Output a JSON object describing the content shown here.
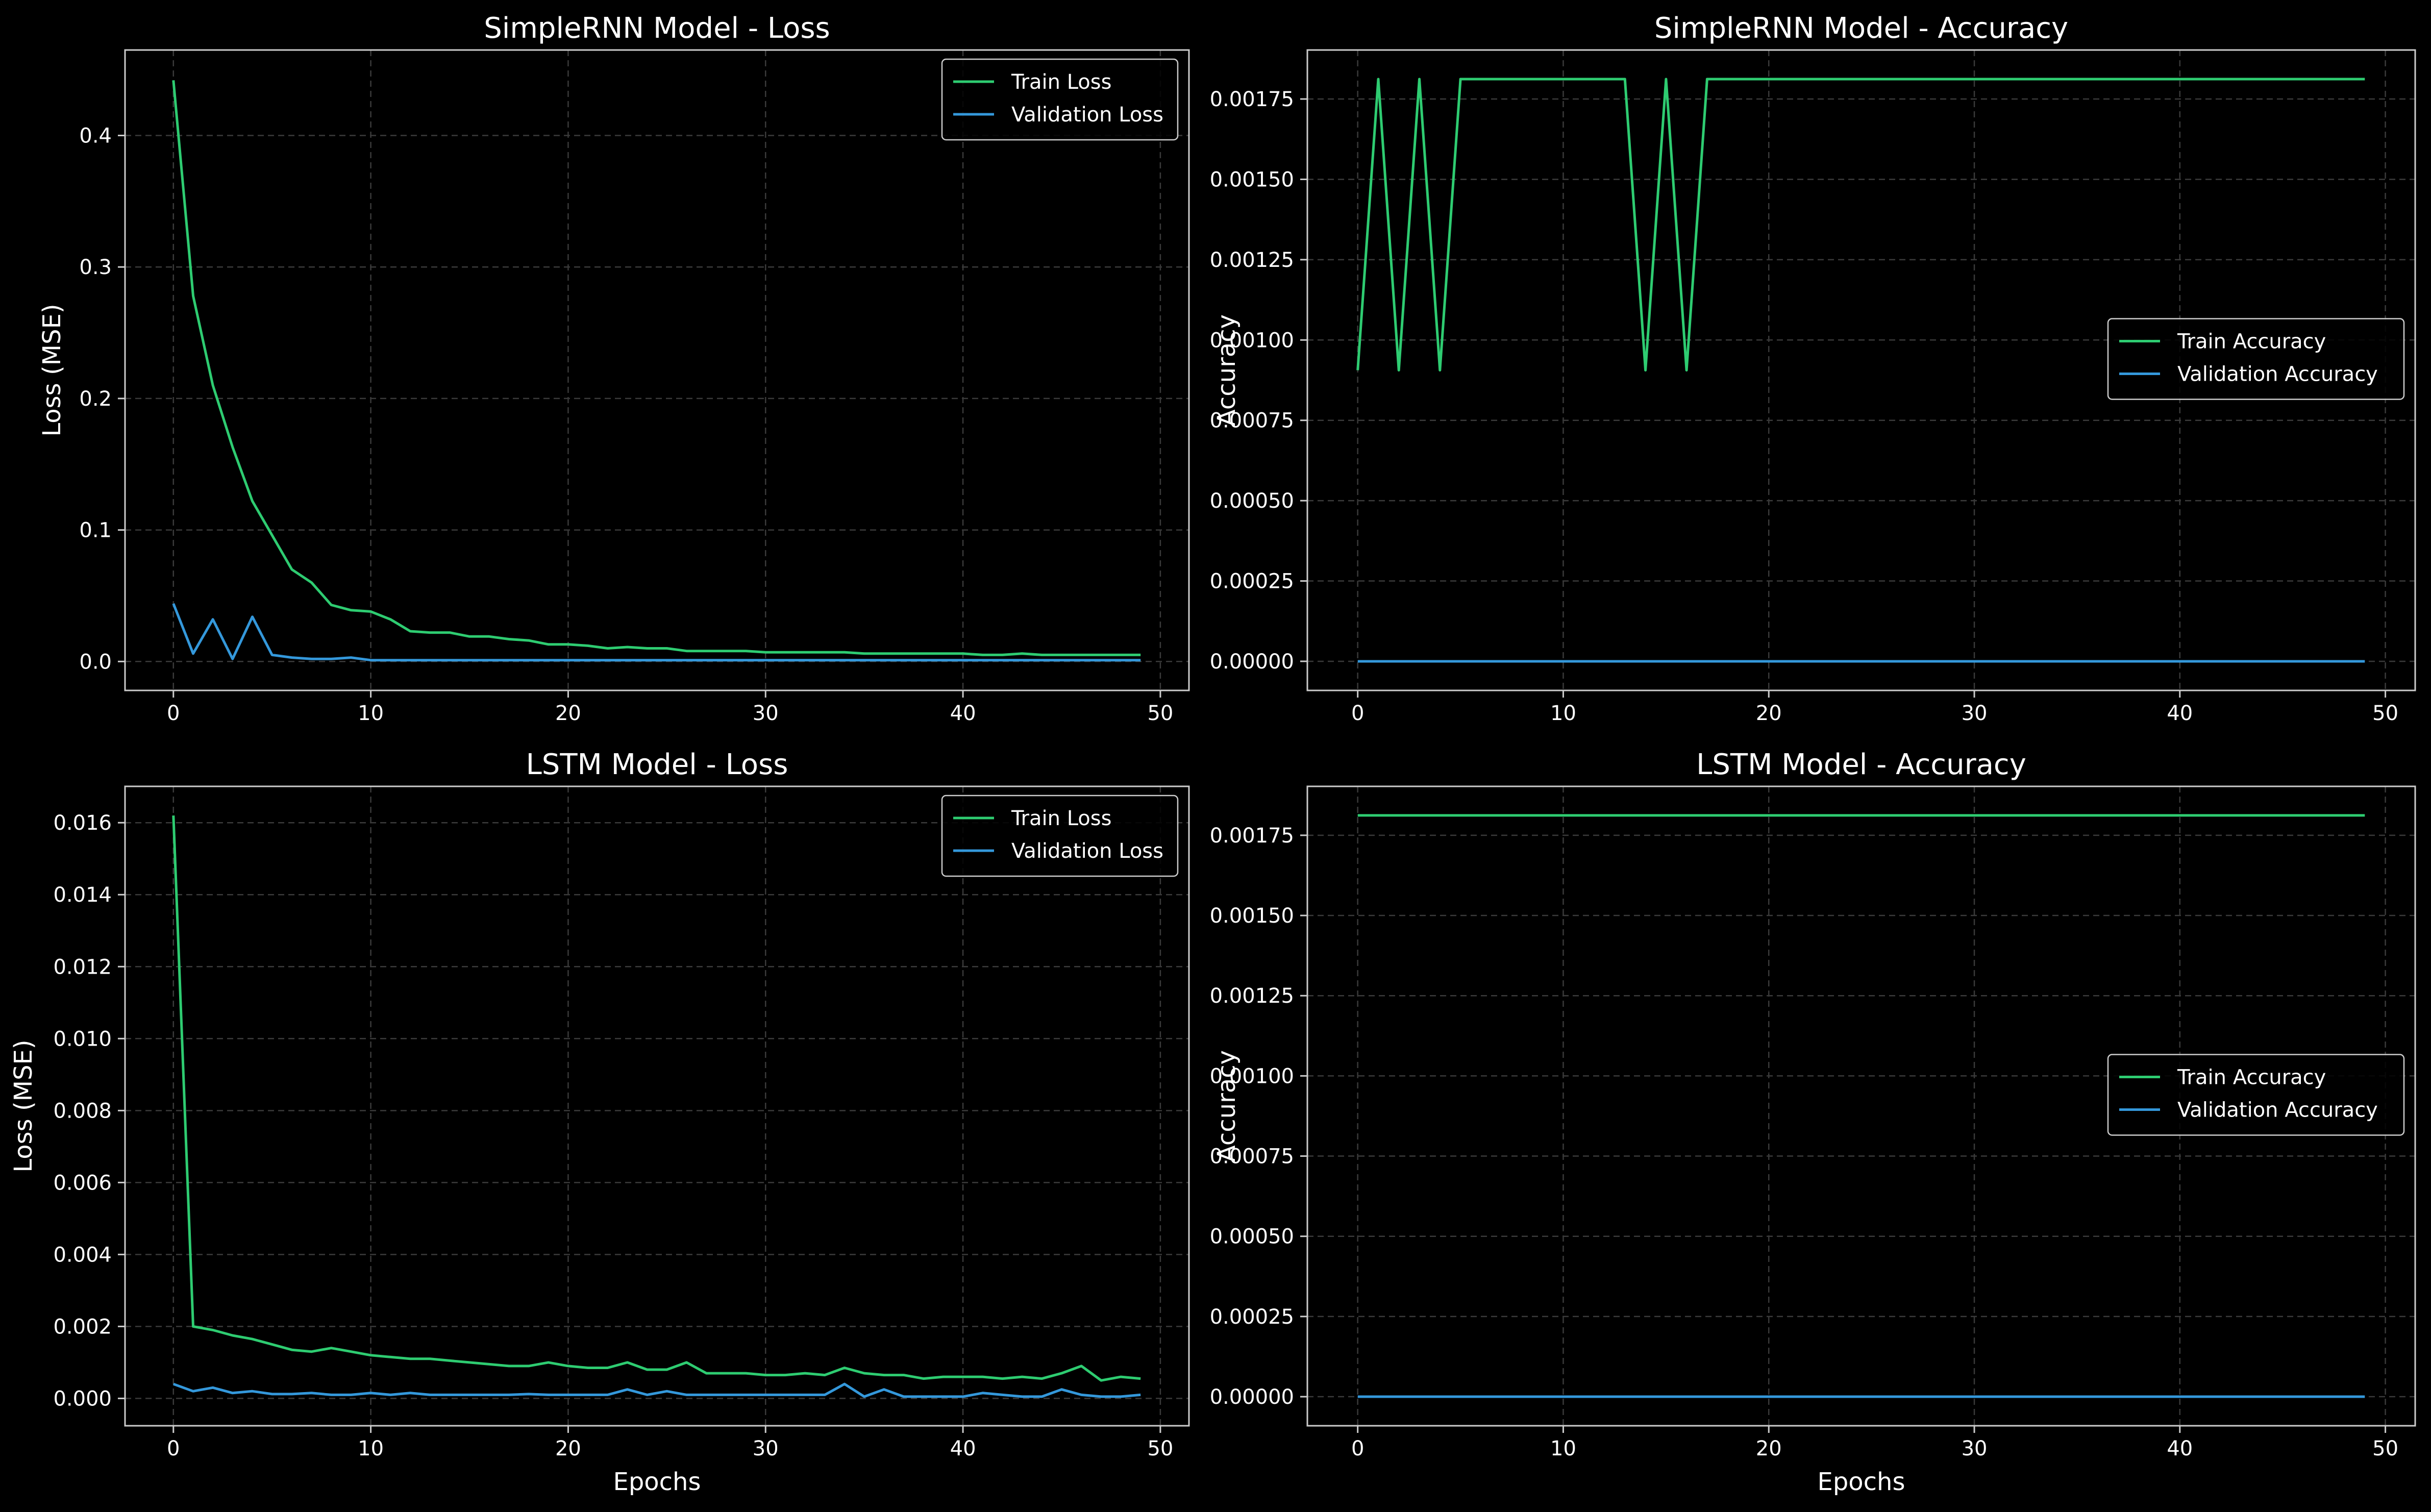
{
  "figure": {
    "background": "#000000"
  },
  "style": {
    "train_color": "#2ecc71",
    "validation_color": "#3498db",
    "axes_color": "#cccccc",
    "text_color": "#ffffff",
    "grid_color": "#3a3a3a"
  },
  "chart_data": [
    {
      "type": "line",
      "title": "SimpleRNN Model - Loss",
      "xlabel": "",
      "ylabel": "Loss (MSE)",
      "xlim": [
        -2.45,
        51.45
      ],
      "ylim": [
        -0.022,
        0.465
      ],
      "xticks": [
        0,
        10,
        20,
        30,
        40,
        50
      ],
      "xtick_labels": [
        "0",
        "10",
        "20",
        "30",
        "40",
        "50"
      ],
      "yticks": [
        0.0,
        0.1,
        0.2,
        0.3,
        0.4
      ],
      "ytick_labels": [
        "0.0",
        "0.1",
        "0.2",
        "0.3",
        "0.4"
      ],
      "grid": true,
      "legend": "upper right",
      "series": [
        {
          "name": "Train Loss",
          "color_key": "train",
          "x": [
            0,
            1,
            2,
            3,
            4,
            5,
            6,
            7,
            8,
            9,
            10,
            11,
            12,
            13,
            14,
            15,
            16,
            17,
            18,
            19,
            20,
            21,
            22,
            23,
            24,
            25,
            26,
            27,
            28,
            29,
            30,
            31,
            32,
            33,
            34,
            35,
            36,
            37,
            38,
            39,
            40,
            41,
            42,
            43,
            44,
            45,
            46,
            47,
            48,
            49
          ],
          "y": [
            0.442,
            0.278,
            0.21,
            0.163,
            0.122,
            0.096,
            0.07,
            0.06,
            0.043,
            0.039,
            0.038,
            0.032,
            0.023,
            0.022,
            0.022,
            0.019,
            0.019,
            0.017,
            0.016,
            0.013,
            0.013,
            0.012,
            0.01,
            0.011,
            0.01,
            0.01,
            0.008,
            0.008,
            0.008,
            0.008,
            0.007,
            0.007,
            0.007,
            0.007,
            0.007,
            0.006,
            0.006,
            0.006,
            0.006,
            0.006,
            0.006,
            0.005,
            0.005,
            0.006,
            0.005,
            0.005,
            0.005,
            0.005,
            0.005,
            0.005
          ]
        },
        {
          "name": "Validation Loss",
          "color_key": "validation",
          "x": [
            0,
            1,
            2,
            3,
            4,
            5,
            6,
            7,
            8,
            9,
            10,
            11,
            12,
            13,
            14,
            15,
            16,
            17,
            18,
            19,
            20,
            21,
            22,
            23,
            24,
            25,
            26,
            27,
            28,
            29,
            30,
            31,
            32,
            33,
            34,
            35,
            36,
            37,
            38,
            39,
            40,
            41,
            42,
            43,
            44,
            45,
            46,
            47,
            48,
            49
          ],
          "y": [
            0.044,
            0.006,
            0.032,
            0.002,
            0.034,
            0.005,
            0.003,
            0.002,
            0.002,
            0.003,
            0.001,
            0.001,
            0.001,
            0.001,
            0.001,
            0.001,
            0.001,
            0.001,
            0.001,
            0.001,
            0.001,
            0.001,
            0.001,
            0.001,
            0.001,
            0.001,
            0.001,
            0.001,
            0.001,
            0.001,
            0.001,
            0.001,
            0.001,
            0.001,
            0.001,
            0.001,
            0.001,
            0.001,
            0.001,
            0.001,
            0.001,
            0.001,
            0.001,
            0.001,
            0.001,
            0.001,
            0.001,
            0.001,
            0.001,
            0.001
          ]
        }
      ]
    },
    {
      "type": "line",
      "title": "SimpleRNN Model - Accuracy",
      "xlabel": "",
      "ylabel": "Accuracy",
      "xlim": [
        -2.45,
        51.45
      ],
      "ylim": [
        -9.06e-05,
        0.0019025
      ],
      "xticks": [
        0,
        10,
        20,
        30,
        40,
        50
      ],
      "xtick_labels": [
        "0",
        "10",
        "20",
        "30",
        "40",
        "50"
      ],
      "yticks": [
        0,
        0.00025,
        0.0005,
        0.00075,
        0.001,
        0.00125,
        0.0015,
        0.00175
      ],
      "ytick_labels": [
        "0.00000",
        "0.00025",
        "0.00050",
        "0.00075",
        "0.00100",
        "0.00125",
        "0.00150",
        "0.00175"
      ],
      "grid": true,
      "legend": "center right",
      "series": [
        {
          "name": "Train Accuracy",
          "color_key": "train",
          "x": [
            0,
            1,
            2,
            3,
            4,
            5,
            6,
            7,
            8,
            9,
            10,
            11,
            12,
            13,
            14,
            15,
            16,
            17,
            18,
            19,
            20,
            21,
            22,
            23,
            24,
            25,
            26,
            27,
            28,
            29,
            30,
            31,
            32,
            33,
            34,
            35,
            36,
            37,
            38,
            39,
            40,
            41,
            42,
            43,
            44,
            45,
            46,
            47,
            48,
            49
          ],
          "y": [
            0.000906,
            0.001812,
            0.000906,
            0.001812,
            0.000906,
            0.001812,
            0.001812,
            0.001812,
            0.001812,
            0.001812,
            0.001812,
            0.001812,
            0.001812,
            0.001812,
            0.000906,
            0.001812,
            0.000906,
            0.001812,
            0.001812,
            0.001812,
            0.001812,
            0.001812,
            0.001812,
            0.001812,
            0.001812,
            0.001812,
            0.001812,
            0.001812,
            0.001812,
            0.001812,
            0.001812,
            0.001812,
            0.001812,
            0.001812,
            0.001812,
            0.001812,
            0.001812,
            0.001812,
            0.001812,
            0.001812,
            0.001812,
            0.001812,
            0.001812,
            0.001812,
            0.001812,
            0.001812,
            0.001812,
            0.001812,
            0.001812,
            0.001812
          ]
        },
        {
          "name": "Validation Accuracy",
          "color_key": "validation",
          "x": [
            0,
            49
          ],
          "y": [
            0,
            0
          ]
        }
      ]
    },
    {
      "type": "line",
      "title": "LSTM Model - Loss",
      "xlabel": "Epochs",
      "ylabel": "Loss (MSE)",
      "xlim": [
        -2.45,
        51.45
      ],
      "ylim": [
        -0.00076,
        0.01701
      ],
      "xticks": [
        0,
        10,
        20,
        30,
        40,
        50
      ],
      "xtick_labels": [
        "0",
        "10",
        "20",
        "30",
        "40",
        "50"
      ],
      "yticks": [
        0,
        0.002,
        0.004,
        0.006,
        0.008,
        0.01,
        0.012,
        0.014,
        0.016
      ],
      "ytick_labels": [
        "0.000",
        "0.002",
        "0.004",
        "0.006",
        "0.008",
        "0.010",
        "0.012",
        "0.014",
        "0.016"
      ],
      "grid": true,
      "legend": "upper right",
      "series": [
        {
          "name": "Train Loss",
          "color_key": "train",
          "x": [
            0,
            1,
            2,
            3,
            4,
            5,
            6,
            7,
            8,
            9,
            10,
            11,
            12,
            13,
            14,
            15,
            16,
            17,
            18,
            19,
            20,
            21,
            22,
            23,
            24,
            25,
            26,
            27,
            28,
            29,
            30,
            31,
            32,
            33,
            34,
            35,
            36,
            37,
            38,
            39,
            40,
            41,
            42,
            43,
            44,
            45,
            46,
            47,
            48,
            49
          ],
          "y": [
            0.0162,
            0.002,
            0.0019,
            0.00175,
            0.00165,
            0.0015,
            0.00135,
            0.0013,
            0.0014,
            0.0013,
            0.0012,
            0.00115,
            0.0011,
            0.0011,
            0.00105,
            0.001,
            0.00095,
            0.0009,
            0.0009,
            0.001,
            0.0009,
            0.00085,
            0.00085,
            0.001,
            0.0008,
            0.0008,
            0.001,
            0.0007,
            0.0007,
            0.0007,
            0.00065,
            0.00065,
            0.0007,
            0.00065,
            0.00085,
            0.0007,
            0.00065,
            0.00065,
            0.00055,
            0.0006,
            0.0006,
            0.0006,
            0.00055,
            0.0006,
            0.00055,
            0.0007,
            0.0009,
            0.0005,
            0.0006,
            0.00055
          ]
        },
        {
          "name": "Validation Loss",
          "color_key": "validation",
          "x": [
            0,
            1,
            2,
            3,
            4,
            5,
            6,
            7,
            8,
            9,
            10,
            11,
            12,
            13,
            14,
            15,
            16,
            17,
            18,
            19,
            20,
            21,
            22,
            23,
            24,
            25,
            26,
            27,
            28,
            29,
            30,
            31,
            32,
            33,
            34,
            35,
            36,
            37,
            38,
            39,
            40,
            41,
            42,
            43,
            44,
            45,
            46,
            47,
            48,
            49
          ],
          "y": [
            0.0004,
            0.0002,
            0.0003,
            0.00015,
            0.0002,
            0.00012,
            0.00012,
            0.00015,
            0.0001,
            0.0001,
            0.00015,
            0.0001,
            0.00015,
            0.0001,
            0.0001,
            0.0001,
            0.0001,
            0.0001,
            0.00012,
            0.0001,
            0.0001,
            0.0001,
            0.0001,
            0.00025,
            0.0001,
            0.0002,
            0.0001,
            0.0001,
            0.0001,
            0.0001,
            0.0001,
            0.0001,
            0.0001,
            0.0001,
            0.0004,
            5e-05,
            0.00025,
            5e-05,
            5e-05,
            5e-05,
            5e-05,
            0.00015,
            0.0001,
            5e-05,
            5e-05,
            0.00025,
            0.0001,
            5e-05,
            5e-05,
            0.0001
          ]
        }
      ]
    },
    {
      "type": "line",
      "title": "LSTM Model - Accuracy",
      "xlabel": "Epochs",
      "ylabel": "Accuracy",
      "xlim": [
        -2.45,
        51.45
      ],
      "ylim": [
        -9.06e-05,
        0.0019025
      ],
      "xticks": [
        0,
        10,
        20,
        30,
        40,
        50
      ],
      "xtick_labels": [
        "0",
        "10",
        "20",
        "30",
        "40",
        "50"
      ],
      "yticks": [
        0,
        0.00025,
        0.0005,
        0.00075,
        0.001,
        0.00125,
        0.0015,
        0.00175
      ],
      "ytick_labels": [
        "0.00000",
        "0.00025",
        "0.00050",
        "0.00075",
        "0.00100",
        "0.00125",
        "0.00150",
        "0.00175"
      ],
      "grid": true,
      "legend": "center right",
      "series": [
        {
          "name": "Train Accuracy",
          "color_key": "train",
          "x": [
            0,
            49
          ],
          "y": [
            0.001812,
            0.001812
          ]
        },
        {
          "name": "Validation Accuracy",
          "color_key": "validation",
          "x": [
            0,
            49
          ],
          "y": [
            0,
            0
          ]
        }
      ]
    }
  ]
}
